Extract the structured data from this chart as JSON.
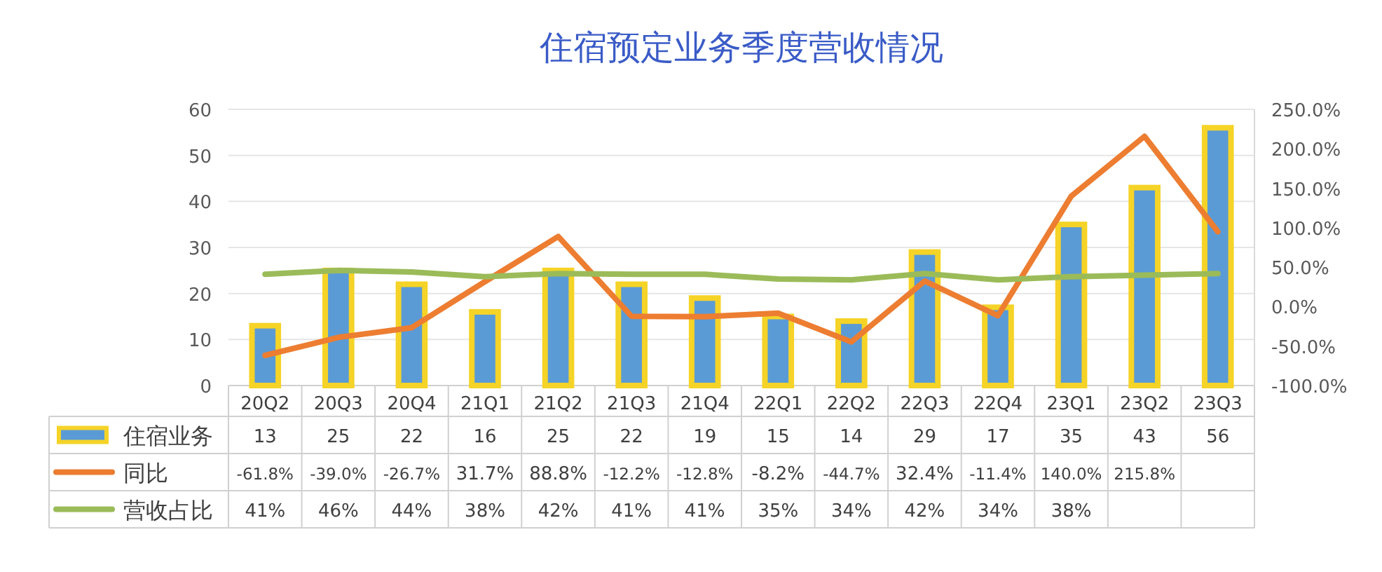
{
  "chart_data": {
    "type": "bar",
    "title": "住宿预定业务季度营收情况",
    "categories": [
      "20Q2",
      "20Q3",
      "20Q4",
      "21Q1",
      "21Q2",
      "21Q3",
      "21Q4",
      "22Q1",
      "22Q2",
      "22Q3",
      "22Q4",
      "23Q1",
      "23Q2",
      "23Q3"
    ],
    "series": [
      {
        "name": "住宿业务",
        "color": "#5b9bd5",
        "values": [
          13,
          25,
          22,
          16,
          25,
          22,
          19,
          15,
          14,
          29,
          17,
          35,
          43,
          56
        ],
        "value_labels": [
          "13",
          "25",
          "22",
          "16",
          "25",
          "22",
          "19",
          "15",
          "14",
          "29",
          "17",
          "35",
          "43",
          "56"
        ]
      },
      {
        "name": "同比",
        "type": "line",
        "axis": "y2",
        "color": "#ed7d31",
        "values": [
          -61.8,
          -39.0,
          -26.7,
          31.7,
          88.8,
          -12.2,
          -12.8,
          -8.2,
          -44.7,
          32.4,
          -11.4,
          140.0,
          215.8,
          95
        ],
        "value_labels": [
          "-61.8%",
          "-39.0%",
          "-26.7%",
          "31.7%",
          "88.8%",
          "-12.2%",
          "-12.8%",
          "-8.2%",
          "-44.7%",
          "32.4%",
          "-11.4%",
          "140.0%",
          "215.8%",
          null
        ]
      },
      {
        "name": "营收占比",
        "type": "line",
        "axis": "y2",
        "color": "#9bbb59",
        "values": [
          41,
          46,
          44,
          38,
          42,
          41,
          41,
          35,
          34,
          42,
          34,
          38,
          40,
          42
        ],
        "value_labels": [
          "41%",
          "46%",
          "44%",
          "38%",
          "42%",
          "41%",
          "41%",
          "35%",
          "34%",
          "42%",
          "34%",
          "38%",
          null,
          null
        ]
      }
    ],
    "ylim": [
      0,
      60
    ],
    "yticks": [
      0,
      10,
      20,
      30,
      40,
      50,
      60
    ],
    "y2lim": [
      -100,
      250
    ],
    "y2ticks": [
      {
        "value": -100,
        "label": "-100.0%"
      },
      {
        "value": -50,
        "label": "-50.0%"
      },
      {
        "value": 0,
        "label": "0.0%"
      },
      {
        "value": 50,
        "label": "50.0%"
      },
      {
        "value": 100,
        "label": "100.0%"
      },
      {
        "value": 150,
        "label": "150.0%"
      },
      {
        "value": 200,
        "label": "200.0%"
      },
      {
        "value": 250,
        "label": "250.0%"
      }
    ],
    "grid": "y",
    "legend": "bottom"
  }
}
